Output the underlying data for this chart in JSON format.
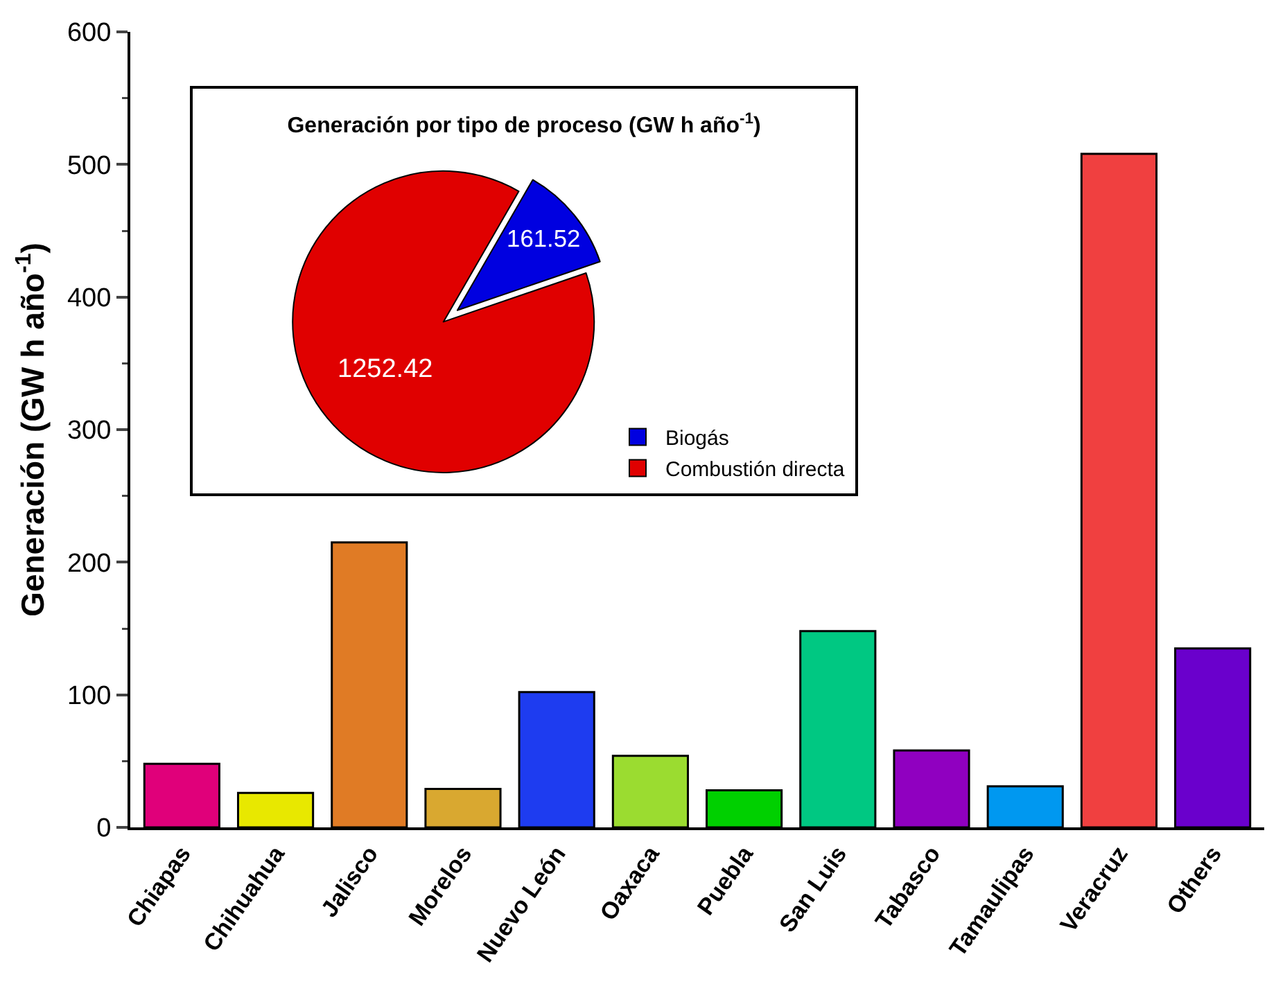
{
  "chart_data": [
    {
      "type": "bar",
      "ylabel": "Generación (GW h año$^{-1}$)",
      "categories": [
        "Chiapas",
        "Chihuahua",
        "Jalisco",
        "Morelos",
        "Nuevo León",
        "Oaxaca",
        "Puebla",
        "San Luis",
        "Tabasco",
        "Tamaulipas",
        "Veracruz",
        "Others"
      ],
      "values": [
        48,
        26,
        215,
        29,
        102,
        54,
        28,
        148,
        58,
        31,
        508,
        135
      ],
      "colors": [
        "#e0007a",
        "#e8e800",
        "#e07b25",
        "#d9a830",
        "#1e3cf0",
        "#9bdc30",
        "#00d000",
        "#00c882",
        "#9000c0",
        "#0098f0",
        "#f04040",
        "#6a00cc"
      ],
      "ylim": [
        0,
        600
      ],
      "yticks": [
        0,
        100,
        200,
        300,
        400,
        500,
        600
      ],
      "grid": false
    },
    {
      "type": "pie",
      "title": "Generación por tipo de proceso (GW h año$^{-1}$)",
      "categories": [
        "Biogás",
        "Combustión directa"
      ],
      "values": [
        161.52,
        1252.42
      ],
      "colors": [
        "#0000e0",
        "#e00000"
      ],
      "data_labels": true,
      "legend": "bottom right"
    }
  ]
}
